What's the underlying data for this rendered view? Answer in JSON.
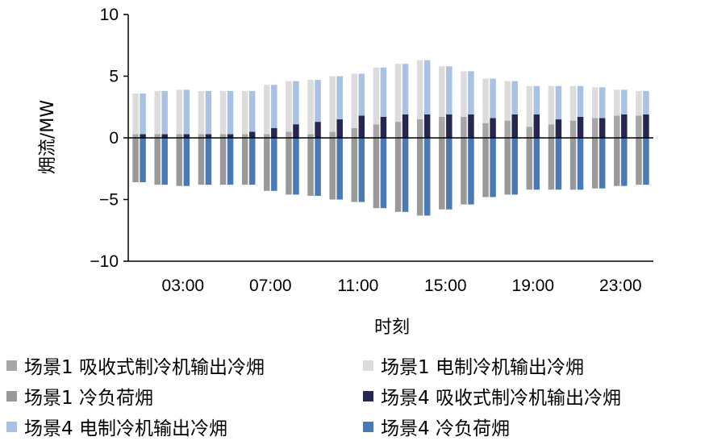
{
  "chart_data": {
    "type": "bar",
    "ylabel": "㶲流/MW",
    "xlabel": "时刻",
    "ylim": [
      -10,
      10
    ],
    "yticks": [
      10,
      5,
      0,
      -5,
      -10
    ],
    "ytick_labels": [
      "10",
      "5",
      "0",
      "−5",
      "−10"
    ],
    "x": [
      1,
      2,
      3,
      4,
      5,
      6,
      7,
      8,
      9,
      10,
      11,
      12,
      13,
      14,
      15,
      16,
      17,
      18,
      19,
      20,
      21,
      22,
      23,
      24
    ],
    "xtick_labels": [
      {
        "label": "03:00",
        "at": 3
      },
      {
        "label": "07:00",
        "at": 7
      },
      {
        "label": "11:00",
        "at": 11
      },
      {
        "label": "15:00",
        "at": 15
      },
      {
        "label": "19:00",
        "at": 19
      },
      {
        "label": "23:00",
        "at": 23
      }
    ],
    "grid": false,
    "legend_position": "bottom",
    "stacked": true,
    "series": [
      {
        "name": "场景1  吸收式制冷机输出冷㶲",
        "group": "场景1",
        "color": "#a6a6a6",
        "values": [
          0.3,
          0.3,
          0.3,
          0.3,
          0.3,
          0.3,
          0.3,
          0.5,
          0.3,
          0.5,
          0.8,
          1.1,
          1.3,
          1.5,
          1.7,
          1.7,
          1.2,
          1.4,
          0.9,
          1.1,
          1.4,
          1.6,
          1.8,
          1.8
        ]
      },
      {
        "name": "场景1  电制冷机输出冷㶲",
        "group": "场景1",
        "color": "#dcdcdc",
        "values": [
          3.3,
          3.5,
          3.6,
          3.5,
          3.5,
          3.5,
          4.0,
          4.1,
          4.4,
          4.5,
          4.4,
          4.6,
          4.7,
          4.8,
          4.1,
          3.7,
          3.6,
          3.2,
          3.3,
          3.1,
          2.8,
          2.5,
          2.1,
          2.0
        ]
      },
      {
        "name": "场景1  冷负荷㶲",
        "group": "场景1",
        "color": "#999999",
        "values": [
          -3.6,
          -3.8,
          -3.9,
          -3.8,
          -3.8,
          -3.8,
          -4.3,
          -4.6,
          -4.7,
          -5.0,
          -5.2,
          -5.7,
          -6.0,
          -6.3,
          -5.8,
          -5.4,
          -4.8,
          -4.6,
          -4.2,
          -4.2,
          -4.2,
          -4.1,
          -3.9,
          -3.8
        ]
      },
      {
        "name": "场景4  吸收式制冷机输出冷㶲",
        "group": "场景4",
        "color": "#262750",
        "values": [
          0.3,
          0.3,
          0.3,
          0.3,
          0.3,
          0.5,
          0.8,
          1.1,
          1.3,
          1.5,
          1.8,
          1.7,
          1.9,
          1.9,
          1.9,
          1.9,
          1.6,
          1.9,
          1.9,
          1.5,
          1.7,
          1.6,
          1.9,
          1.9
        ]
      },
      {
        "name": "场景4  电制冷机输出冷㶲",
        "group": "场景4",
        "color": "#a9c1e2",
        "values": [
          3.3,
          3.5,
          3.6,
          3.5,
          3.5,
          3.3,
          3.5,
          3.5,
          3.4,
          3.5,
          3.4,
          4.0,
          4.1,
          4.4,
          3.9,
          3.5,
          3.2,
          2.7,
          2.3,
          2.7,
          2.5,
          2.5,
          2.0,
          1.9
        ]
      },
      {
        "name": "场景4  冷负荷㶲",
        "group": "场景4",
        "color": "#4a7ab6",
        "values": [
          -3.6,
          -3.8,
          -3.9,
          -3.8,
          -3.8,
          -3.8,
          -4.3,
          -4.6,
          -4.7,
          -5.0,
          -5.2,
          -5.7,
          -6.0,
          -6.3,
          -5.8,
          -5.4,
          -4.8,
          -4.6,
          -4.2,
          -4.2,
          -4.2,
          -4.1,
          -3.9,
          -3.8
        ]
      }
    ]
  }
}
